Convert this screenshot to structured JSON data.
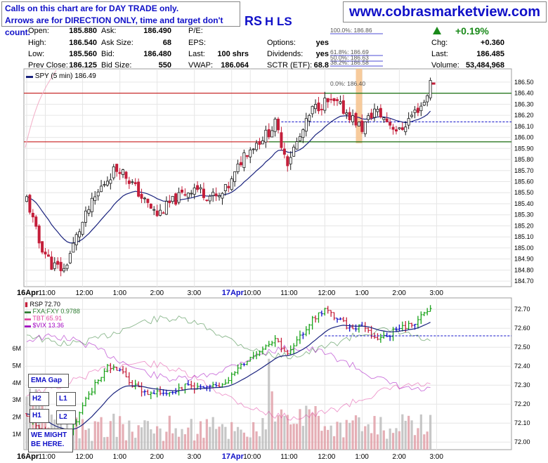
{
  "notice": {
    "line1": "Calls on this chart are for DAY TRADE only.",
    "line2": "Arrows are for DIRECTION ONLY, time and target don't count."
  },
  "website": "www.cobrasmarketview.com",
  "symbol_partial": "RS",
  "symbol_tail": "H LS",
  "quote": {
    "labels": {
      "open": "Open:",
      "high": "High:",
      "low": "Low:",
      "prev_close": "Prev Close:",
      "ask": "Ask:",
      "ask_size": "Ask Size:",
      "bid": "Bid:",
      "bid_size": "Bid Size:",
      "pe": "P/E:",
      "eps": "EPS:",
      "last": "Last:",
      "vwap": "VWAP:",
      "options": "Options:",
      "dividends": "Dividends:",
      "sctr": "SCTR (ETF):",
      "chg": "Chg:",
      "last2": "Last:",
      "volume": "Volume:"
    },
    "open": "185.880",
    "high": "186.540",
    "low": "185.560",
    "prev_close": "186.125",
    "ask": "186.490",
    "ask_size": "68",
    "bid": "186.480",
    "bid_size": "550",
    "last_shares": "100 shrs",
    "vwap": "186.064",
    "options": "yes",
    "dividends": "yes",
    "sctr": "68.8",
    "change_pct": "+0.19%",
    "chg": "+0.360",
    "last": "186.485",
    "volume": "53,484,968"
  },
  "colors": {
    "up": "#1a1a1a",
    "down": "#c41e3a",
    "ema": "#1a237e",
    "resistance": "#c00000",
    "support": "#1a7a1a",
    "dashed": "#1010c8",
    "fib": "#1010c8",
    "highlight": "#f6c28b",
    "rsp_up": "#1aa31a",
    "rsp_down": "#c41e3a",
    "rsp_flat": "#1010c8",
    "fxa": "#2e7d32",
    "tbt": "#e040a0",
    "vix": "#a000c0",
    "volume": "#bdbdbd",
    "volume_down": "#e0a0a8"
  },
  "upper_legend": "SPY (5 min) 186.49",
  "fib_labels": [
    "100.0%: 186.86",
    "61.8%: 186.69",
    "50.0%: 186.63",
    "38.2%: 186.58",
    "0.0%: 186.40"
  ],
  "lower_legend": {
    "rsp": "RSP 72.70",
    "fxa": "FXA:FXY 0.9788",
    "tbt": "TBT 65.91",
    "vix": "$VIX 13.36"
  },
  "annotations": {
    "ema_gap": "EMA Gap",
    "h2": "H2",
    "h1": "H1",
    "l1": "L1",
    "l2": "L2",
    "might_be_here": "WE MIGHT BE HERE."
  },
  "chart_data": [
    {
      "type": "candlestick",
      "title": "SPY (5 min) 186.49",
      "ylim": [
        184.65,
        186.62
      ],
      "y_ticks": [
        "186.50",
        "186.40",
        "186.30",
        "186.20",
        "186.10",
        "186.00",
        "185.90",
        "185.80",
        "185.70",
        "185.60",
        "185.50",
        "185.40",
        "185.30",
        "185.20",
        "185.10",
        "185.00",
        "184.90",
        "184.80",
        "184.70"
      ],
      "x_ticks": [
        "16Apr",
        "11:00",
        "12:00",
        "1:00",
        "2:00",
        "3:00",
        "17Apr",
        "10:00",
        "11:00",
        "12:00",
        "1:00",
        "2:00",
        "3:00"
      ],
      "levels": {
        "resistance": 186.4,
        "support": 185.96,
        "dashed": 186.14
      },
      "day1_close_approx": 186.12,
      "last": 186.49
    },
    {
      "type": "bar",
      "title": "RSP 72.70",
      "ylim": [
        71.96,
        72.76
      ],
      "y_ticks": [
        "72.70",
        "72.60",
        "72.50",
        "72.40",
        "72.30",
        "72.20",
        "72.10",
        "72.00"
      ],
      "volume_ticks": [
        "6M",
        "5M",
        "4M",
        "3M",
        "2M",
        "1M"
      ],
      "dashed_level": 72.56,
      "last": 72.7,
      "series": [
        {
          "name": "FXA:FXY 0.9788"
        },
        {
          "name": "TBT 65.91"
        },
        {
          "name": "$VIX 13.36"
        }
      ]
    }
  ]
}
